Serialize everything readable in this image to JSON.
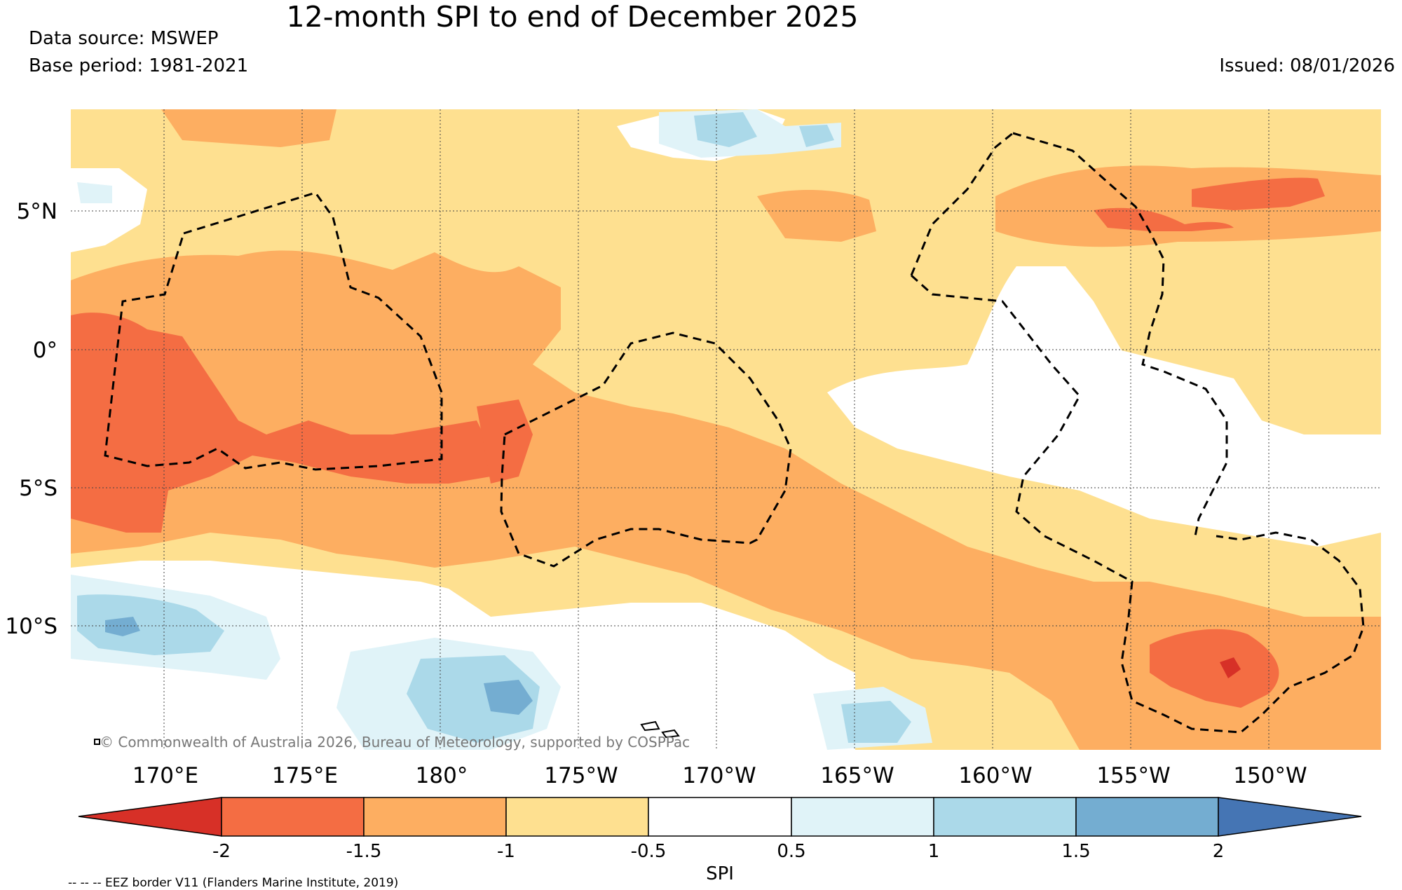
{
  "title": "12-month SPI to end of December 2025",
  "data_source": "Data source: MSWEP",
  "base_period": "Base period: 1981-2021",
  "issued": "Issued: 08/01/2026",
  "copyright": "© Commonwealth of Australia 2026, Bureau of Meteorology, supported by COSPPac",
  "lon_labels": [
    "170°E",
    "175°E",
    "180°",
    "175°W",
    "170°W",
    "165°W",
    "160°W",
    "155°W",
    "150°W"
  ],
  "lat_labels": [
    "5°N",
    "0°",
    "5°S",
    "10°S"
  ],
  "colorbar": {
    "title": "SPI",
    "ticks": [
      "-2",
      "-1.5",
      "-1",
      "-0.5",
      "0.5",
      "1",
      "1.5",
      "2"
    ],
    "colors": [
      "#d73027",
      "#f46d43",
      "#fdae61",
      "#fee090",
      "#ffffff",
      "#e0f3f8",
      "#abd9e9",
      "#74add1",
      "#4575b4"
    ]
  },
  "footer": "-- -- -- EEZ border V11 (Flanders Marine Institute, 2019)"
}
